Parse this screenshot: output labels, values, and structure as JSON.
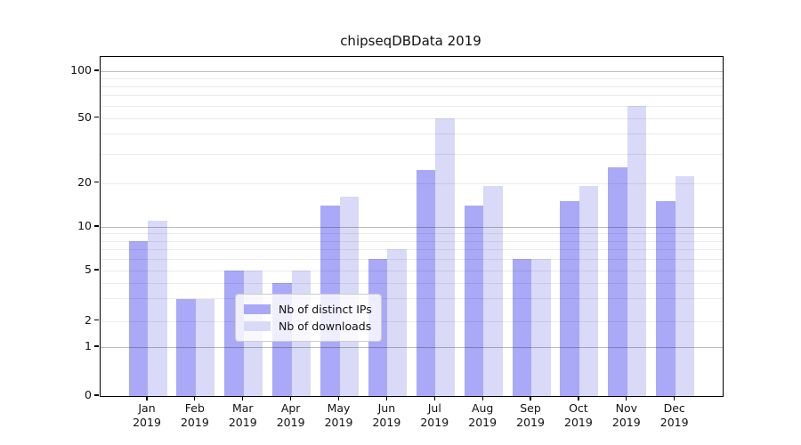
{
  "title": "chipseqDBData 2019",
  "chart_data": {
    "type": "bar",
    "title": "chipseqDBData 2019",
    "categories": [
      "Jan",
      "Feb",
      "Mar",
      "Apr",
      "May",
      "Jun",
      "Jul",
      "Aug",
      "Sep",
      "Oct",
      "Nov",
      "Dec"
    ],
    "category_year": "2019",
    "series": [
      {
        "name": "Nb of distinct IPs",
        "color": "#a9a9f7",
        "values": [
          8,
          3,
          5,
          4,
          14,
          6,
          24,
          14,
          6,
          15,
          25,
          15
        ]
      },
      {
        "name": "Nb of downloads",
        "color": "#d9d9f8",
        "values": [
          11,
          3,
          5,
          5,
          16,
          7,
          50,
          19,
          6,
          19,
          60,
          22
        ]
      }
    ],
    "xlabel": "",
    "ylabel": "",
    "y_tick_labels": [
      "0",
      "1",
      "2",
      "5",
      "10",
      "20",
      "50",
      "100"
    ],
    "y_tick_values": [
      0,
      1,
      2,
      5,
      10,
      20,
      50,
      100
    ],
    "y_minor_grid_values": [
      2,
      3,
      4,
      5,
      6,
      7,
      8,
      9,
      20,
      30,
      40,
      50,
      60,
      70,
      80,
      90
    ],
    "y_major_grid_values": [
      1,
      10,
      100
    ],
    "y_scale": "log-like",
    "ylim": [
      0,
      123
    ],
    "grid": "horizontal",
    "legend_position": "bottom-center",
    "colors": {
      "bar_dark": "#a9a9f7",
      "bar_light": "#d9d9f8",
      "axis": "#000000",
      "minor_grid": "#ebebeb",
      "major_grid": "#bdbdbd",
      "legend_border": "#cccccc"
    }
  }
}
